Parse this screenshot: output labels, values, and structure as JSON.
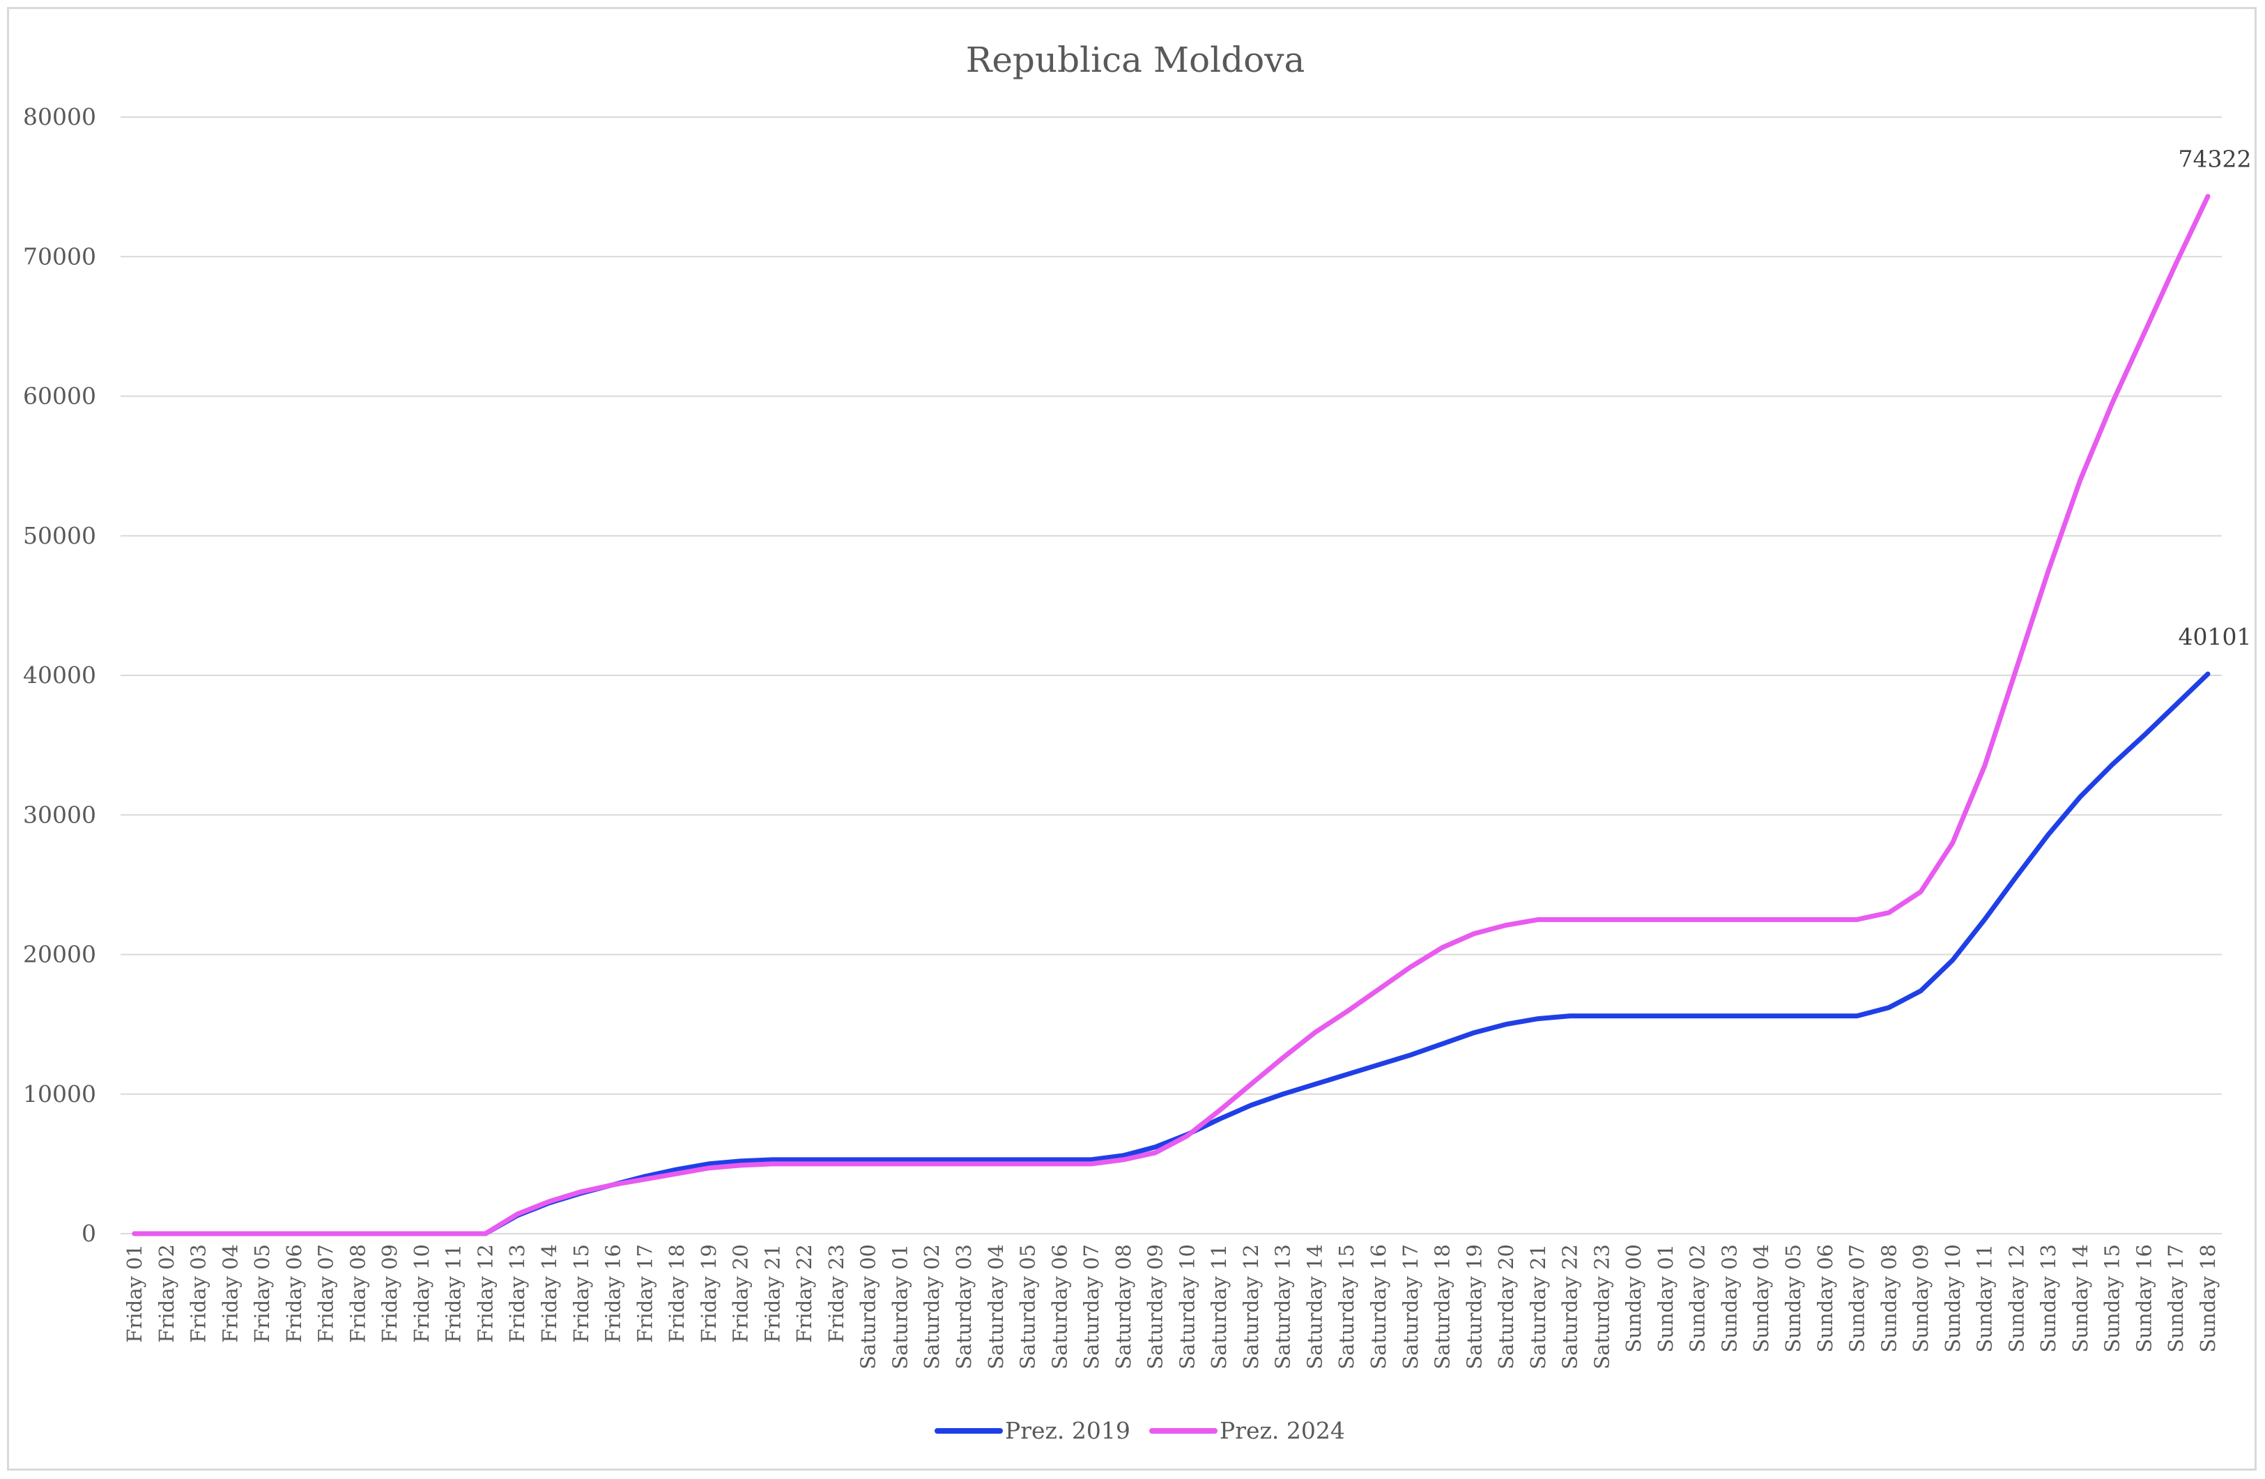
{
  "chart_data": {
    "type": "line",
    "title": "Republica Moldova",
    "xlabel": "",
    "ylabel": "",
    "ylim": [
      0,
      80000
    ],
    "yticks": [
      0,
      10000,
      20000,
      30000,
      40000,
      50000,
      60000,
      70000,
      80000
    ],
    "grid": true,
    "legend_position": "bottom",
    "categories": [
      "Friday 01",
      "Friday 02",
      "Friday 03",
      "Friday 04",
      "Friday 05",
      "Friday 06",
      "Friday 07",
      "Friday 08",
      "Friday 09",
      "Friday 10",
      "Friday 11",
      "Friday 12",
      "Friday 13",
      "Friday 14",
      "Friday 15",
      "Friday 16",
      "Friday 17",
      "Friday 18",
      "Friday 19",
      "Friday 20",
      "Friday 21",
      "Friday 22",
      "Friday 23",
      "Saturday 00",
      "Saturday 01",
      "Saturday 02",
      "Saturday 03",
      "Saturday 04",
      "Saturday 05",
      "Saturday 06",
      "Saturday 07",
      "Saturday 08",
      "Saturday 09",
      "Saturday 10",
      "Saturday 11",
      "Saturday 12",
      "Saturday 13",
      "Saturday 14",
      "Saturday 15",
      "Saturday 16",
      "Saturday 17",
      "Saturday 18",
      "Saturday 19",
      "Saturday 20",
      "Saturday 21",
      "Saturday 22",
      "Saturday 23",
      "Sunday 00",
      "Sunday 01",
      "Sunday 02",
      "Sunday 03",
      "Sunday 04",
      "Sunday 05",
      "Sunday 06",
      "Sunday 07",
      "Sunday 08",
      "Sunday 09",
      "Sunday 10",
      "Sunday 11",
      "Sunday 12",
      "Sunday 13",
      "Sunday 14",
      "Sunday 15",
      "Sunday 16",
      "Sunday 17",
      "Sunday 18"
    ],
    "series": [
      {
        "name": "Prez. 2019",
        "color": "#1f3fe6",
        "values": [
          0,
          0,
          0,
          0,
          0,
          0,
          0,
          0,
          0,
          0,
          0,
          0,
          1300,
          2200,
          2900,
          3500,
          4100,
          4600,
          5000,
          5200,
          5300,
          5300,
          5300,
          5300,
          5300,
          5300,
          5300,
          5300,
          5300,
          5300,
          5300,
          5600,
          6200,
          7100,
          8200,
          9200,
          10000,
          10700,
          11400,
          12100,
          12800,
          13600,
          14400,
          15000,
          15400,
          15600,
          15600,
          15600,
          15600,
          15600,
          15600,
          15600,
          15600,
          15600,
          15600,
          16200,
          17400,
          19600,
          22500,
          25600,
          28600,
          31300,
          33600,
          35700,
          37900,
          40101
        ],
        "last_label": "40101"
      },
      {
        "name": "Prez. 2024",
        "color": "#e85bf0",
        "values": [
          0,
          0,
          0,
          0,
          0,
          0,
          0,
          0,
          0,
          0,
          0,
          0,
          1400,
          2300,
          3000,
          3500,
          3900,
          4300,
          4700,
          4900,
          5000,
          5000,
          5000,
          5000,
          5000,
          5000,
          5000,
          5000,
          5000,
          5000,
          5000,
          5300,
          5800,
          7000,
          8800,
          10700,
          12600,
          14400,
          15900,
          17500,
          19100,
          20500,
          21500,
          22100,
          22500,
          22500,
          22500,
          22500,
          22500,
          22500,
          22500,
          22500,
          22500,
          22500,
          22500,
          23000,
          24500,
          28000,
          33500,
          40500,
          47500,
          54000,
          59500,
          64500,
          69500,
          74322
        ],
        "last_label": "74322"
      }
    ]
  }
}
